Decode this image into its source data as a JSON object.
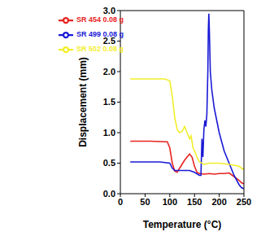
{
  "chart_data": {
    "type": "line",
    "x_label": "Temperature (°C)",
    "y_label": "Displacement (mm)",
    "xlim": [
      0,
      250
    ],
    "xticks": [
      0,
      50,
      100,
      150,
      200,
      250
    ],
    "ylim": [
      0,
      3
    ],
    "yticks": [
      {
        "value": 0,
        "label": "0.0"
      },
      0.5,
      {
        "value": 1,
        "label": "1.0"
      },
      1.5,
      {
        "value": 2,
        "label": "2.0"
      },
      2.5,
      {
        "value": 3,
        "label": "3.0"
      }
    ],
    "legend": "upper left",
    "series": [
      {
        "name": "SR 454 0.08 g",
        "color": "#e8231e",
        "x": [
          20,
          60,
          95,
          100,
          105,
          110,
          115,
          120,
          130,
          140,
          145,
          150,
          155,
          160,
          170,
          180,
          190,
          200,
          210,
          220,
          230,
          240,
          245,
          250
        ],
        "values": [
          0.86,
          0.86,
          0.85,
          0.75,
          0.5,
          0.37,
          0.35,
          0.42,
          0.55,
          0.65,
          0.6,
          0.45,
          0.35,
          0.33,
          0.32,
          0.33,
          0.32,
          0.33,
          0.33,
          0.34,
          0.28,
          0.22,
          0.18,
          0.16
        ]
      },
      {
        "name": "SR 499 0.08 g",
        "color": "#1a1ad6",
        "x": [
          20,
          80,
          100,
          105,
          110,
          140,
          150,
          160,
          163,
          165,
          167,
          169,
          171,
          173,
          175,
          177,
          178,
          179,
          180,
          182,
          185,
          190,
          200,
          210,
          220,
          230,
          240,
          245,
          250
        ],
        "values": [
          0.52,
          0.52,
          0.5,
          0.42,
          0.38,
          0.38,
          0.35,
          0.3,
          0.3,
          0.9,
          0.6,
          1.05,
          1.2,
          1.1,
          1.3,
          2.0,
          2.7,
          2.95,
          2.7,
          2.0,
          1.7,
          1.4,
          1.0,
          0.7,
          0.5,
          0.3,
          0.15,
          0.1,
          0.08
        ]
      },
      {
        "name": "SR 502 0.08 g",
        "color": "#f2ee2a",
        "x": [
          20,
          90,
          100,
          105,
          110,
          115,
          120,
          125,
          130,
          135,
          140,
          143,
          147,
          150,
          155,
          160,
          170,
          180,
          200,
          220,
          240,
          248,
          250
        ],
        "values": [
          1.88,
          1.88,
          1.85,
          1.6,
          1.25,
          1.05,
          1.0,
          1.02,
          1.1,
          1.0,
          0.9,
          0.95,
          0.75,
          0.7,
          0.6,
          0.52,
          0.48,
          0.5,
          0.5,
          0.48,
          0.45,
          0.4,
          0.42
        ]
      }
    ]
  }
}
